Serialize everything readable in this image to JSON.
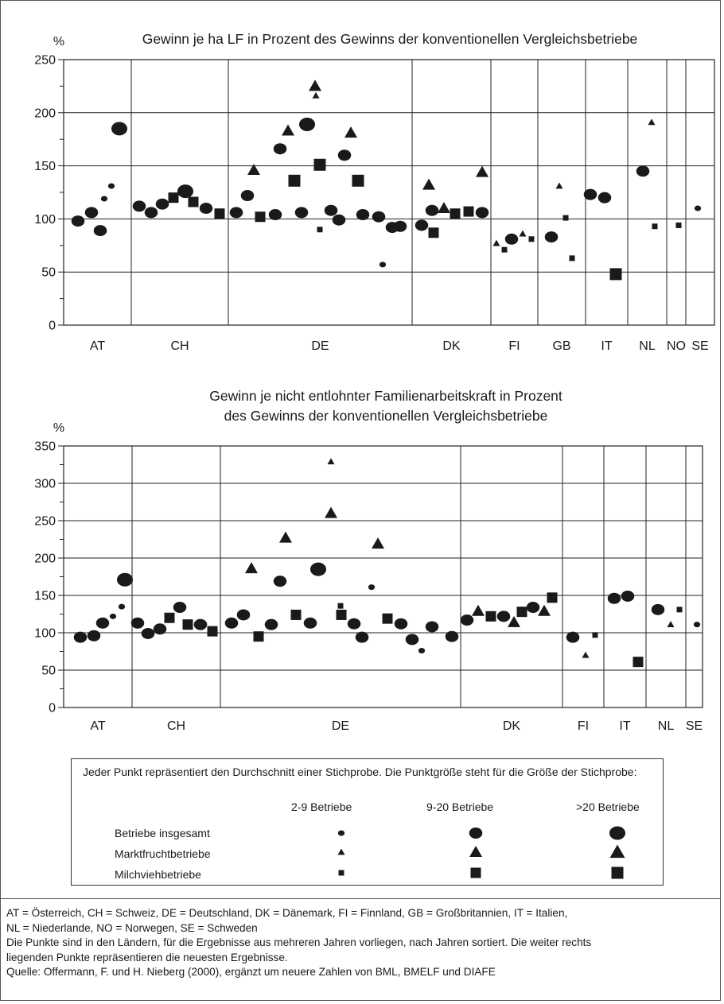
{
  "chart_data": [
    {
      "type": "scatter",
      "title": "Gewinn je ha LF in Prozent des Gewinns der konventionellen Vergleichsbetriebe",
      "unit": "%",
      "ylim": [
        0,
        250
      ],
      "yticks": [
        0,
        50,
        100,
        150,
        200,
        250
      ],
      "grid": true,
      "categories": [
        "AT",
        "CH",
        "DE",
        "DK",
        "FI",
        "GB",
        "IT",
        "NL",
        "NO",
        "SE"
      ],
      "series": [
        {
          "country": "AT",
          "points": [
            {
              "kind": "insgesamt",
              "size": "9-20",
              "value": 98
            },
            {
              "kind": "insgesamt",
              "size": "9-20",
              "value": 106
            },
            {
              "kind": "insgesamt",
              "size": "9-20",
              "value": 89
            },
            {
              "kind": "insgesamt",
              "size": "2-9",
              "value": 119
            },
            {
              "kind": "insgesamt",
              "size": "2-9",
              "value": 131
            },
            {
              "kind": "insgesamt",
              "size": ">20",
              "value": 185
            }
          ]
        },
        {
          "country": "CH",
          "points": [
            {
              "kind": "insgesamt",
              "size": "9-20",
              "value": 112
            },
            {
              "kind": "insgesamt",
              "size": "9-20",
              "value": 106
            },
            {
              "kind": "insgesamt",
              "size": "9-20",
              "value": 114
            },
            {
              "kind": "milch",
              "size": "9-20",
              "value": 120
            },
            {
              "kind": "insgesamt",
              "size": ">20",
              "value": 126
            },
            {
              "kind": "milch",
              "size": "9-20",
              "value": 116
            },
            {
              "kind": "insgesamt",
              "size": "9-20",
              "value": 110
            },
            {
              "kind": "milch",
              "size": "9-20",
              "value": 105
            }
          ]
        },
        {
          "country": "DE",
          "points": [
            {
              "kind": "insgesamt",
              "size": "9-20",
              "value": 106
            },
            {
              "kind": "insgesamt",
              "size": "9-20",
              "value": 122
            },
            {
              "kind": "markt",
              "size": "9-20",
              "value": 146
            },
            {
              "kind": "milch",
              "size": "9-20",
              "value": 102
            },
            {
              "kind": "insgesamt",
              "size": "9-20",
              "value": 104
            },
            {
              "kind": "insgesamt",
              "size": "9-20",
              "value": 166
            },
            {
              "kind": "markt",
              "size": "9-20",
              "value": 183
            },
            {
              "kind": "milch",
              "size": ">20",
              "value": 136
            },
            {
              "kind": "insgesamt",
              "size": "9-20",
              "value": 106
            },
            {
              "kind": "insgesamt",
              "size": ">20",
              "value": 189
            },
            {
              "kind": "markt",
              "size": "9-20",
              "value": 225
            },
            {
              "kind": "markt",
              "size": "2-9",
              "value": 216
            },
            {
              "kind": "milch",
              "size": "2-9",
              "value": 90
            },
            {
              "kind": "milch",
              "size": ">20",
              "value": 151
            },
            {
              "kind": "insgesamt",
              "size": "9-20",
              "value": 108
            },
            {
              "kind": "insgesamt",
              "size": "9-20",
              "value": 99
            },
            {
              "kind": "insgesamt",
              "size": "9-20",
              "value": 160
            },
            {
              "kind": "markt",
              "size": "9-20",
              "value": 181
            },
            {
              "kind": "milch",
              "size": ">20",
              "value": 136
            },
            {
              "kind": "insgesamt",
              "size": "9-20",
              "value": 104
            },
            {
              "kind": "insgesamt",
              "size": "9-20",
              "value": 102
            },
            {
              "kind": "insgesamt",
              "size": "2-9",
              "value": 57
            },
            {
              "kind": "insgesamt",
              "size": "9-20",
              "value": 92
            },
            {
              "kind": "insgesamt",
              "size": "9-20",
              "value": 93
            }
          ]
        },
        {
          "country": "DK",
          "points": [
            {
              "kind": "insgesamt",
              "size": "9-20",
              "value": 94
            },
            {
              "kind": "markt",
              "size": "9-20",
              "value": 132
            },
            {
              "kind": "insgesamt",
              "size": "9-20",
              "value": 108
            },
            {
              "kind": "milch",
              "size": "9-20",
              "value": 87
            },
            {
              "kind": "markt",
              "size": "9-20",
              "value": 110
            },
            {
              "kind": "milch",
              "size": "9-20",
              "value": 105
            },
            {
              "kind": "milch",
              "size": "9-20",
              "value": 107
            },
            {
              "kind": "markt",
              "size": "9-20",
              "value": 144
            },
            {
              "kind": "insgesamt",
              "size": "9-20",
              "value": 106
            }
          ]
        },
        {
          "country": "FI",
          "points": [
            {
              "kind": "markt",
              "size": "2-9",
              "value": 77
            },
            {
              "kind": "milch",
              "size": "2-9",
              "value": 71
            },
            {
              "kind": "insgesamt",
              "size": "9-20",
              "value": 81
            },
            {
              "kind": "markt",
              "size": "2-9",
              "value": 86
            },
            {
              "kind": "milch",
              "size": "2-9",
              "value": 81
            }
          ]
        },
        {
          "country": "GB",
          "points": [
            {
              "kind": "insgesamt",
              "size": "9-20",
              "value": 83
            },
            {
              "kind": "markt",
              "size": "2-9",
              "value": 131
            },
            {
              "kind": "milch",
              "size": "2-9",
              "value": 101
            },
            {
              "kind": "milch",
              "size": "2-9",
              "value": 63
            }
          ]
        },
        {
          "country": "IT",
          "points": [
            {
              "kind": "insgesamt",
              "size": "9-20",
              "value": 123
            },
            {
              "kind": "insgesamt",
              "size": "9-20",
              "value": 120
            },
            {
              "kind": "milch",
              "size": ">20",
              "value": 48
            }
          ]
        },
        {
          "country": "NL",
          "points": [
            {
              "kind": "insgesamt",
              "size": "9-20",
              "value": 145
            },
            {
              "kind": "markt",
              "size": "2-9",
              "value": 191
            },
            {
              "kind": "milch",
              "size": "2-9",
              "value": 93
            }
          ]
        },
        {
          "country": "NO",
          "points": [
            {
              "kind": "milch",
              "size": "2-9",
              "value": 94
            }
          ]
        },
        {
          "country": "SE",
          "points": [
            {
              "kind": "insgesamt",
              "size": "2-9",
              "value": 110
            }
          ]
        }
      ]
    },
    {
      "type": "scatter",
      "title": "Gewinn je nicht entlohnter Familienarbeitskraft in Prozent des Gewinns der konventionellen Vergleichsbetriebe",
      "title_lines": [
        "Gewinn je nicht entlohnter Familienarbeitskraft in Prozent",
        "des Gewinns der konventionellen Vergleichsbetriebe"
      ],
      "unit": "%",
      "ylim": [
        0,
        350
      ],
      "yticks": [
        0,
        50,
        100,
        150,
        200,
        250,
        300,
        350
      ],
      "grid": true,
      "categories": [
        "AT",
        "CH",
        "DE",
        "DK",
        "FI",
        "IT",
        "NL",
        "SE"
      ],
      "series": [
        {
          "country": "AT",
          "points": [
            {
              "kind": "insgesamt",
              "size": "9-20",
              "value": 94
            },
            {
              "kind": "insgesamt",
              "size": "9-20",
              "value": 96
            },
            {
              "kind": "insgesamt",
              "size": "9-20",
              "value": 113
            },
            {
              "kind": "insgesamt",
              "size": "2-9",
              "value": 122
            },
            {
              "kind": "insgesamt",
              "size": "2-9",
              "value": 135
            },
            {
              "kind": "insgesamt",
              "size": ">20",
              "value": 171
            }
          ]
        },
        {
          "country": "CH",
          "points": [
            {
              "kind": "insgesamt",
              "size": "9-20",
              "value": 113
            },
            {
              "kind": "insgesamt",
              "size": "9-20",
              "value": 99
            },
            {
              "kind": "insgesamt",
              "size": "9-20",
              "value": 105
            },
            {
              "kind": "milch",
              "size": "9-20",
              "value": 120
            },
            {
              "kind": "insgesamt",
              "size": "9-20",
              "value": 134
            },
            {
              "kind": "milch",
              "size": "9-20",
              "value": 111
            },
            {
              "kind": "insgesamt",
              "size": "9-20",
              "value": 111
            },
            {
              "kind": "milch",
              "size": "9-20",
              "value": 102
            }
          ]
        },
        {
          "country": "DE",
          "points": [
            {
              "kind": "insgesamt",
              "size": "9-20",
              "value": 113
            },
            {
              "kind": "insgesamt",
              "size": "9-20",
              "value": 124
            },
            {
              "kind": "markt",
              "size": "9-20",
              "value": 186
            },
            {
              "kind": "milch",
              "size": "9-20",
              "value": 95
            },
            {
              "kind": "insgesamt",
              "size": "9-20",
              "value": 111
            },
            {
              "kind": "markt",
              "size": "9-20",
              "value": 227
            },
            {
              "kind": "insgesamt",
              "size": "9-20",
              "value": 169
            },
            {
              "kind": "milch",
              "size": "9-20",
              "value": 124
            },
            {
              "kind": "insgesamt",
              "size": "9-20",
              "value": 113
            },
            {
              "kind": "insgesamt",
              "size": ">20",
              "value": 185
            },
            {
              "kind": "markt",
              "size": "2-9",
              "value": 329
            },
            {
              "kind": "markt",
              "size": "9-20",
              "value": 260
            },
            {
              "kind": "milch",
              "size": "2-9",
              "value": 136
            },
            {
              "kind": "milch",
              "size": "9-20",
              "value": 124
            },
            {
              "kind": "insgesamt",
              "size": "9-20",
              "value": 112
            },
            {
              "kind": "insgesamt",
              "size": "9-20",
              "value": 94
            },
            {
              "kind": "insgesamt",
              "size": "2-9",
              "value": 161
            },
            {
              "kind": "markt",
              "size": "9-20",
              "value": 219
            },
            {
              "kind": "milch",
              "size": "9-20",
              "value": 119
            },
            {
              "kind": "insgesamt",
              "size": "9-20",
              "value": 112
            },
            {
              "kind": "insgesamt",
              "size": "9-20",
              "value": 91
            },
            {
              "kind": "insgesamt",
              "size": "2-9",
              "value": 76
            },
            {
              "kind": "insgesamt",
              "size": "9-20",
              "value": 108
            },
            {
              "kind": "insgesamt",
              "size": "9-20",
              "value": 95
            }
          ]
        },
        {
          "country": "DK",
          "points": [
            {
              "kind": "insgesamt",
              "size": "9-20",
              "value": 117
            },
            {
              "kind": "markt",
              "size": "9-20",
              "value": 129
            },
            {
              "kind": "milch",
              "size": "9-20",
              "value": 122
            },
            {
              "kind": "insgesamt",
              "size": "9-20",
              "value": 122
            },
            {
              "kind": "markt",
              "size": "9-20",
              "value": 114
            },
            {
              "kind": "milch",
              "size": "9-20",
              "value": 128
            },
            {
              "kind": "insgesamt",
              "size": "9-20",
              "value": 134
            },
            {
              "kind": "markt",
              "size": "9-20",
              "value": 129
            },
            {
              "kind": "milch",
              "size": "9-20",
              "value": 147
            }
          ]
        },
        {
          "country": "FI",
          "points": [
            {
              "kind": "insgesamt",
              "size": "9-20",
              "value": 94
            },
            {
              "kind": "markt",
              "size": "2-9",
              "value": 70
            },
            {
              "kind": "milch",
              "size": "2-9",
              "value": 97
            }
          ]
        },
        {
          "country": "IT",
          "points": [
            {
              "kind": "insgesamt",
              "size": "9-20",
              "value": 146
            },
            {
              "kind": "insgesamt",
              "size": "9-20",
              "value": 149
            },
            {
              "kind": "milch",
              "size": "9-20",
              "value": 61
            }
          ]
        },
        {
          "country": "NL",
          "points": [
            {
              "kind": "insgesamt",
              "size": "9-20",
              "value": 131
            },
            {
              "kind": "markt",
              "size": "2-9",
              "value": 111
            },
            {
              "kind": "milch",
              "size": "2-9",
              "value": 131
            }
          ]
        },
        {
          "country": "SE",
          "points": [
            {
              "kind": "insgesamt",
              "size": "2-9",
              "value": 111
            }
          ]
        }
      ]
    }
  ],
  "legend": {
    "intro": "Jeder Punkt repräsentiert den Durchschnitt einer Stichprobe. Die Punktgröße steht für die Größe der Stichprobe:",
    "sizes": [
      "2-9 Betriebe",
      "9-20 Betriebe",
      ">20 Betriebe"
    ],
    "rows": [
      {
        "label": "Betriebe insgesamt",
        "shape": "circle"
      },
      {
        "label": "Marktfruchtbetriebe",
        "shape": "triangle"
      },
      {
        "label": "Milchviehbetriebe",
        "shape": "square"
      }
    ]
  },
  "notes": [
    "AT = Österreich, CH = Schweiz, DE = Deutschland, DK = Dänemark, FI = Finnland, GB = Großbritannien, IT = Italien,",
    "NL = Niederlande, NO = Norwegen, SE = Schweden",
    "Die Punkte sind in den Ländern, für die Ergebnisse aus mehreren Jahren vorliegen, nach Jahren sortiert. Die weiter rechts",
    "liegenden Punkte repräsentieren die neuesten Ergebnisse.",
    "Quelle: Offermann, F. und H. Nieberg (2000), ergänzt um neuere Zahlen von BML, BMELF und DIAFE"
  ],
  "colors": {
    "marker": "#1a1a1a",
    "grid": "#222222",
    "frame": "#555555"
  }
}
